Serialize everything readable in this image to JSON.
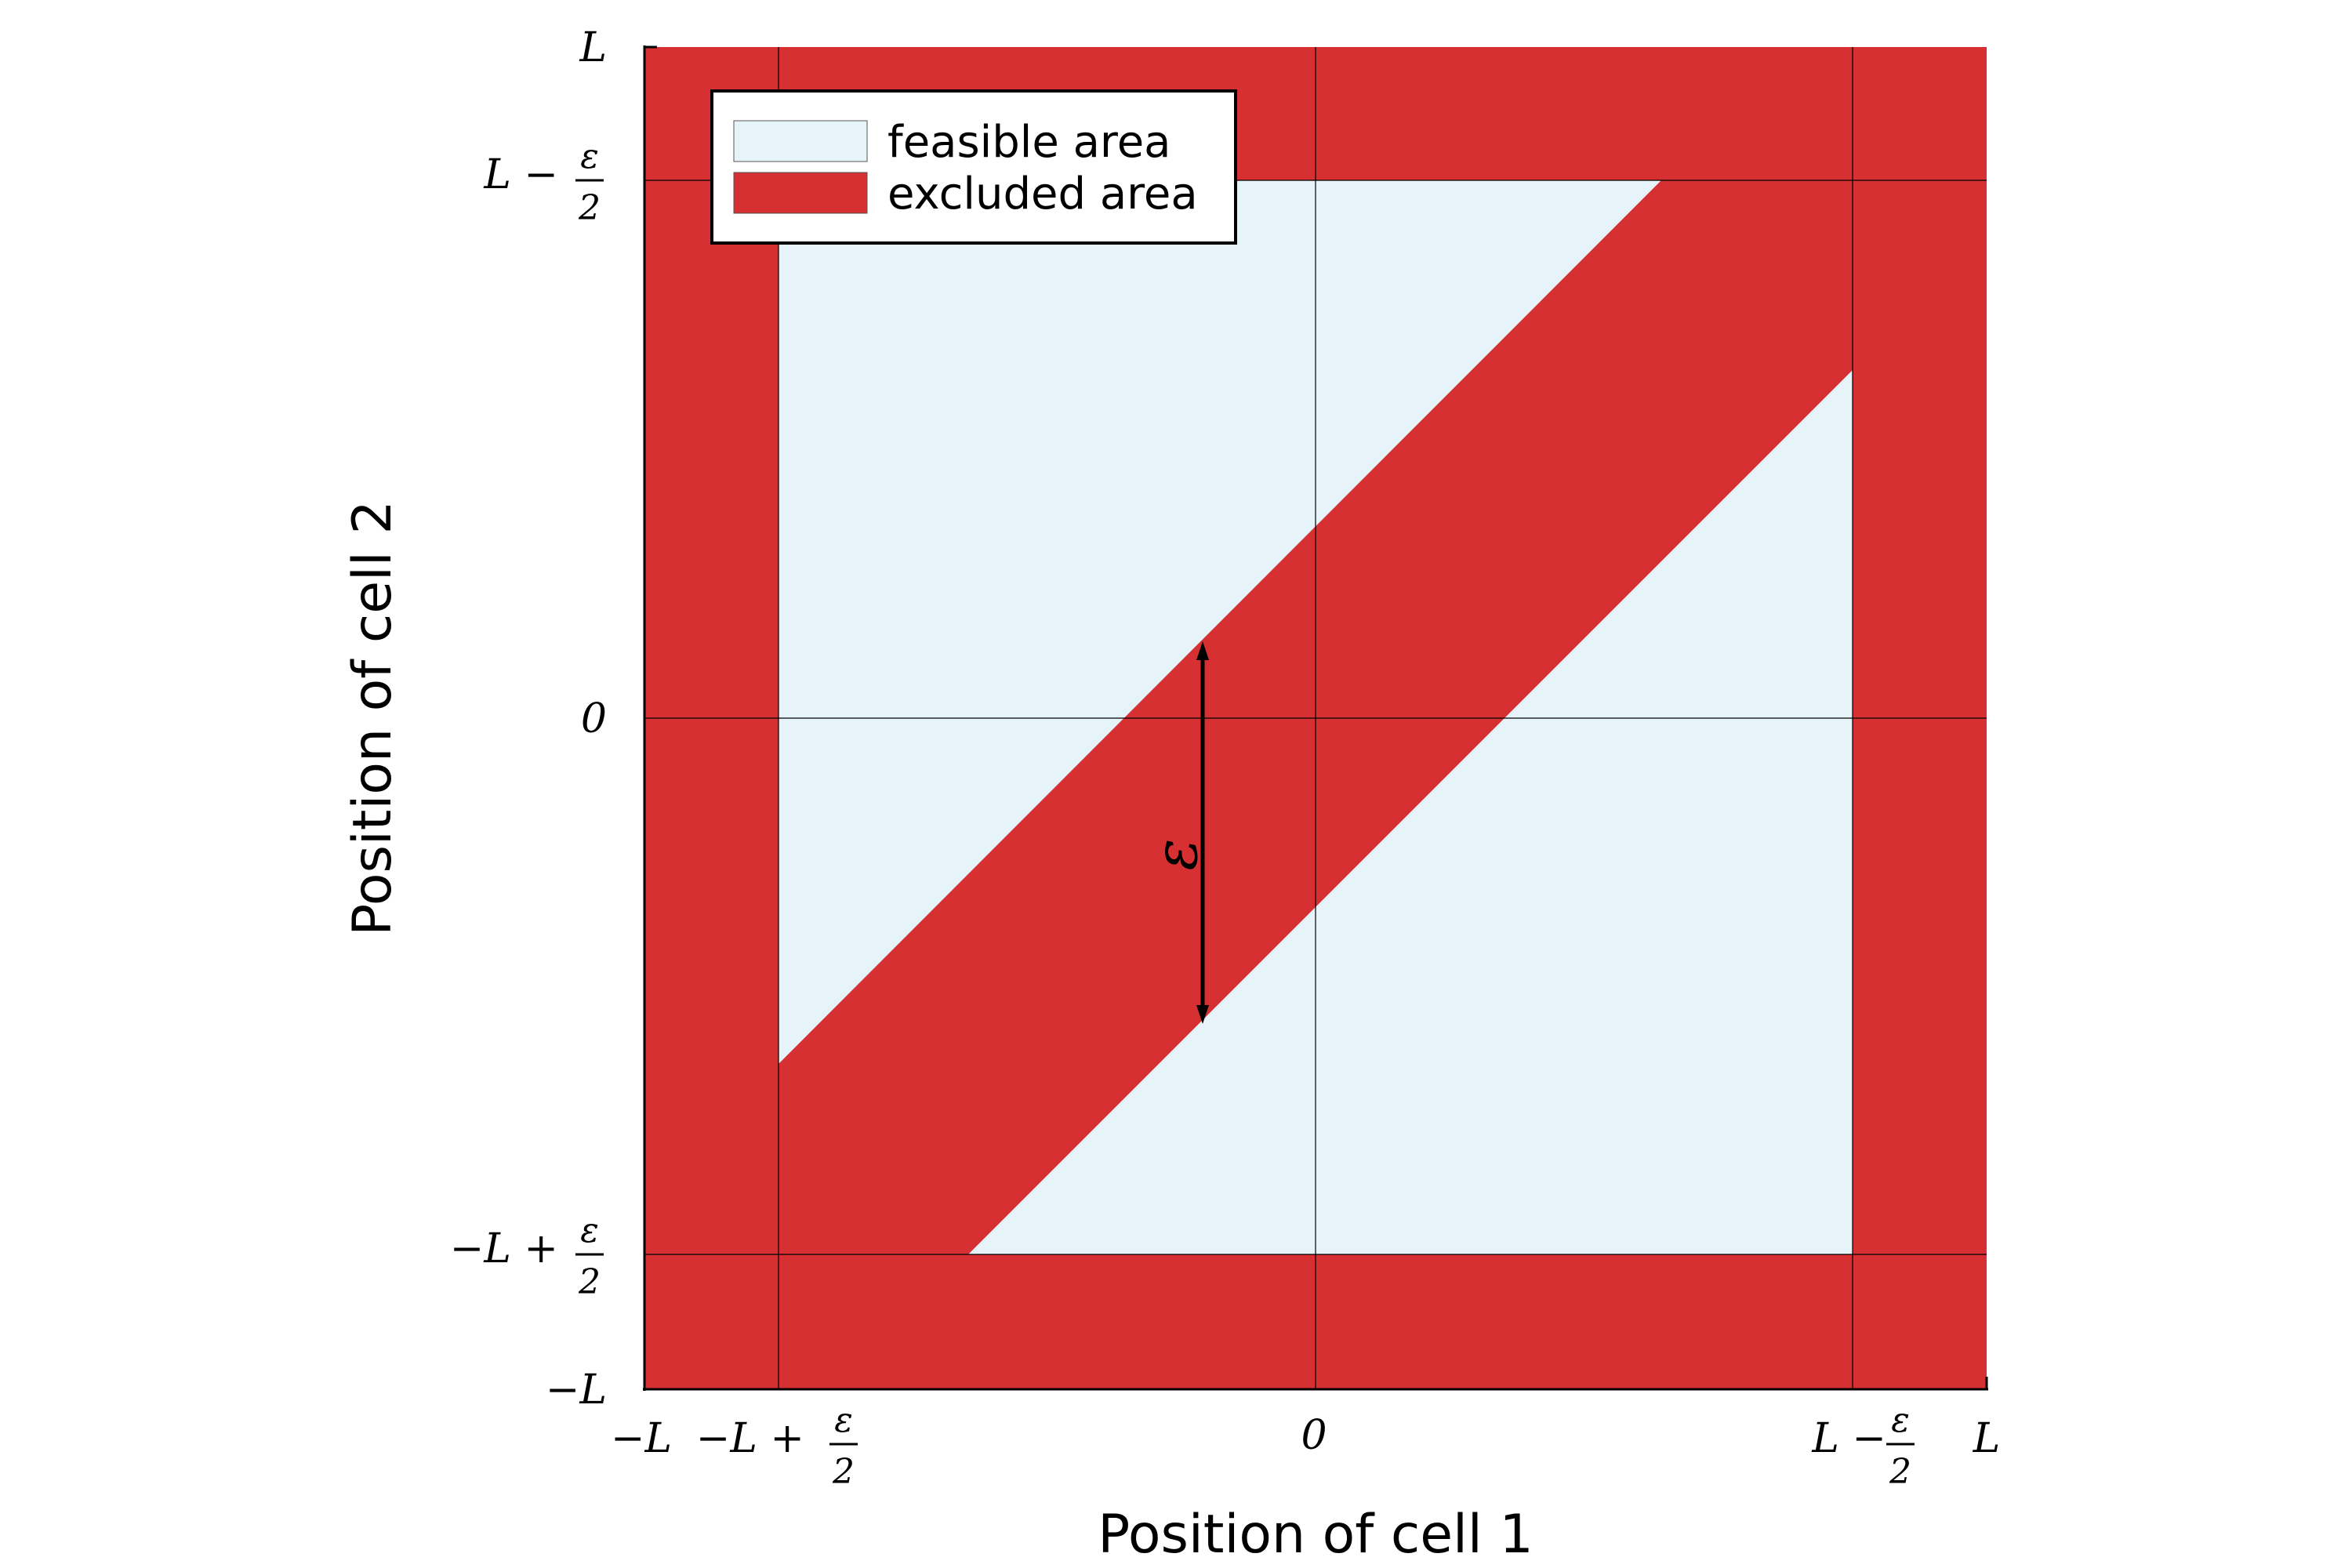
{
  "figure": {
    "x_axis_title": "Position of cell 1",
    "y_axis_title": "Position of cell 2",
    "x_ticks": [
      {
        "id": "neg-L",
        "main": "−L",
        "frac_num": "",
        "frac_den": ""
      },
      {
        "id": "neg-L-plus",
        "main": "−L +",
        "frac_num": "ε",
        "frac_den": "2"
      },
      {
        "id": "zero",
        "main": "0",
        "frac_num": "",
        "frac_den": ""
      },
      {
        "id": "L-minus",
        "main": "L −",
        "frac_num": "ε",
        "frac_den": "2"
      },
      {
        "id": "L",
        "main": "L",
        "frac_num": "",
        "frac_den": ""
      }
    ],
    "y_ticks": [
      {
        "id": "L",
        "main": "L",
        "frac_num": "",
        "frac_den": ""
      },
      {
        "id": "L-minus",
        "main": "L −",
        "frac_num": "ε",
        "frac_den": "2"
      },
      {
        "id": "zero",
        "main": "0",
        "frac_num": "",
        "frac_den": ""
      },
      {
        "id": "neg-L-plus",
        "main": "−L +",
        "frac_num": "ε",
        "frac_den": "2"
      },
      {
        "id": "neg-L",
        "main": "−L",
        "frac_num": "",
        "frac_den": ""
      }
    ],
    "legend": {
      "feasible_label": "feasible area",
      "excluded_label": "excluded area"
    },
    "annotation_epsilon": "ε",
    "colors": {
      "feasible": "#e6f3f9",
      "excluded": "#d73032",
      "grid": "#000000"
    }
  }
}
